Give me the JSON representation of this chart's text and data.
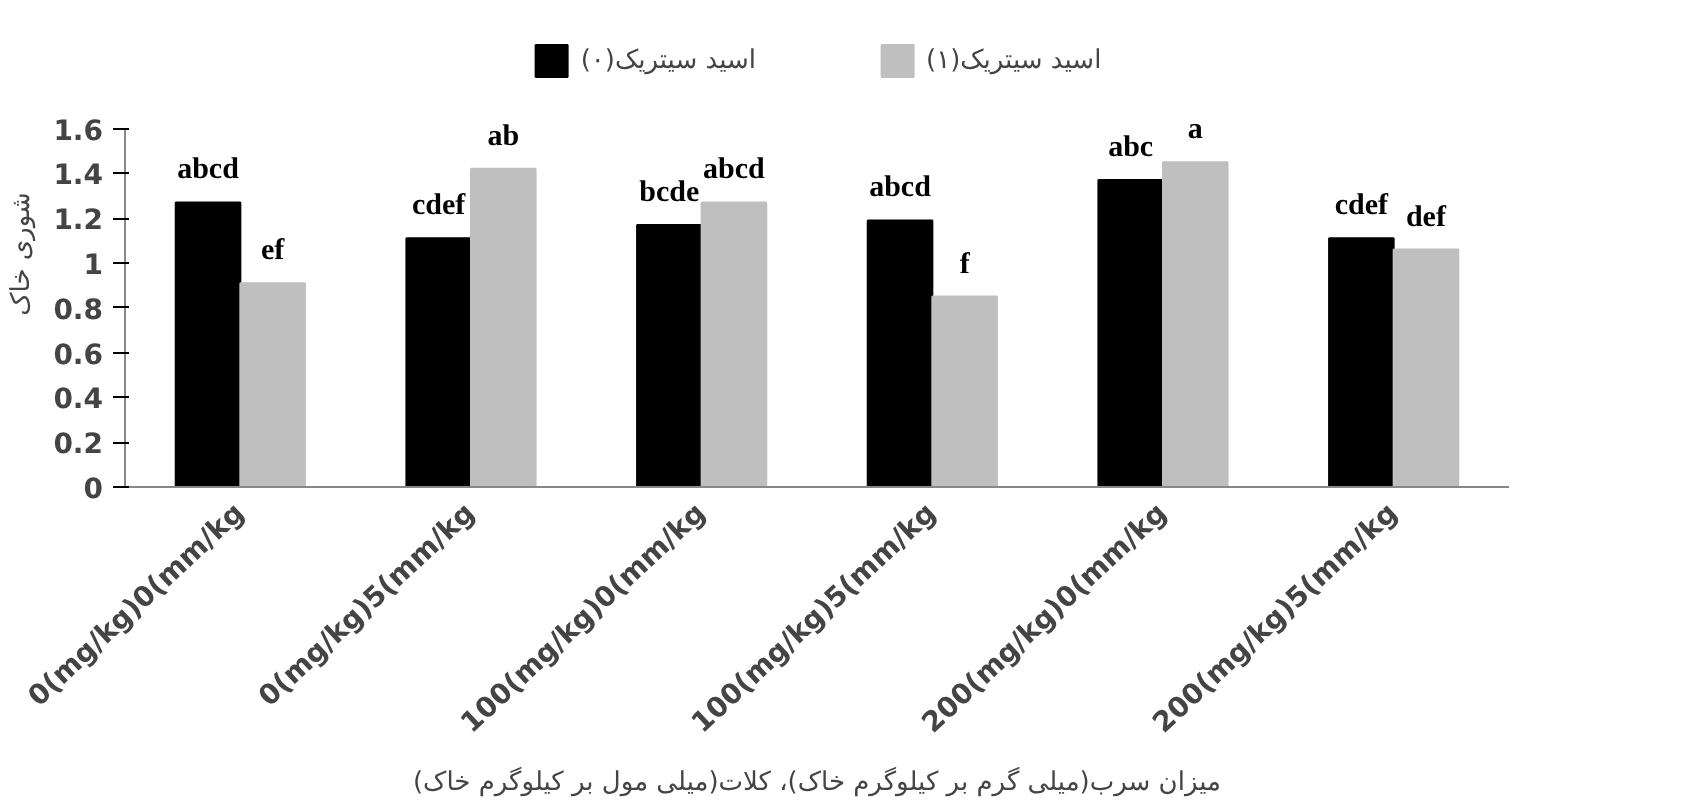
{
  "chart_data": {
    "type": "bar",
    "xlabel": "میزان سرب(میلی گرم بر کیلوگرم خاک)، کلات(میلی مول بر کیلوگرم خاک)",
    "ylabel": "شوری خاک",
    "categories": [
      "0(mg/kg)0(mm/kg",
      "0(mg/kg)5(mm/kg",
      "100(mg/kg)0(mm/kg",
      "100(mg/kg)5(mm/kg",
      "200(mg/kg)0(mm/kg",
      "200(mg/kg)5(mm/kg"
    ],
    "series": [
      {
        "name": "اسید سیتریک(۰)",
        "color": "#000000",
        "values": [
          1.27,
          1.11,
          1.17,
          1.19,
          1.37,
          1.11
        ],
        "value_labels": [
          "abcd",
          "cdef",
          "bcde",
          "abcd",
          "abc",
          "cdef"
        ]
      },
      {
        "name": "اسید سیتریک(۱)",
        "color": "#bfbfbf",
        "values": [
          0.91,
          1.42,
          1.27,
          0.85,
          1.45,
          1.06
        ],
        "value_labels": [
          "ef",
          "ab",
          "abcd",
          "f",
          "a",
          "def"
        ]
      }
    ],
    "ylim": [
      0,
      1.6
    ],
    "yticks": [
      0,
      0.2,
      0.4,
      0.6,
      0.8,
      1,
      1.2,
      1.4,
      1.6
    ],
    "grid": false,
    "legend": "top"
  }
}
